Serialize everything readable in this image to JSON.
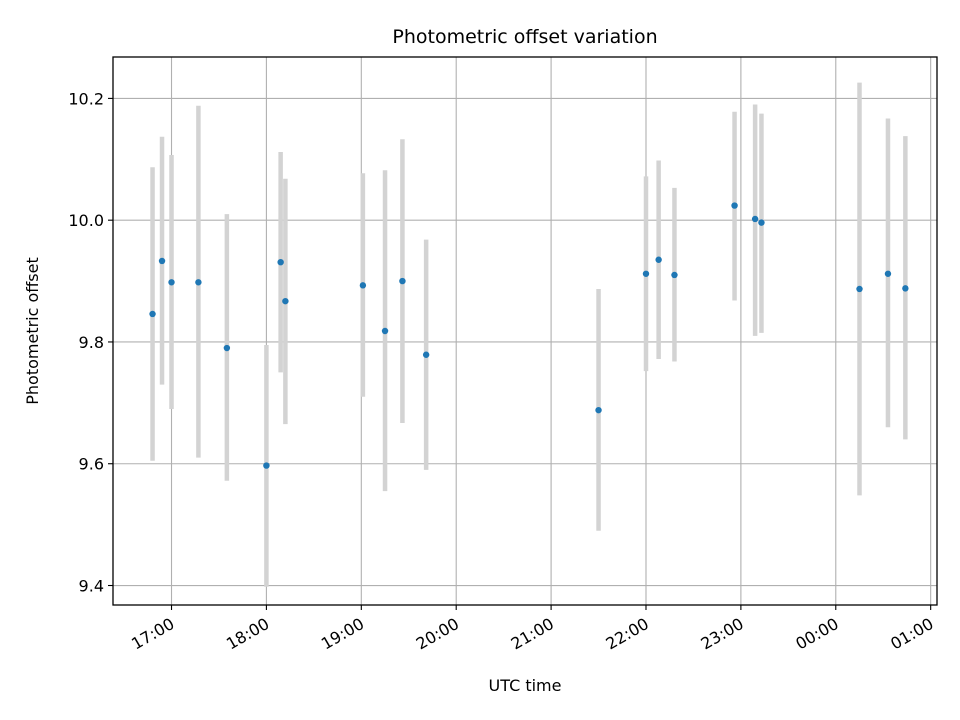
{
  "chart_data": {
    "type": "scatter",
    "title": "Photometric offset variation",
    "xlabel": "UTC time",
    "ylabel": "Photometric offset",
    "x_ticks": [
      "17:00",
      "18:00",
      "19:00",
      "20:00",
      "21:00",
      "22:00",
      "23:00",
      "00:00",
      "01:00"
    ],
    "y_ticks": [
      "9.4",
      "9.6",
      "9.8",
      "10.0",
      "10.2"
    ],
    "x_tick_values": [
      17.0,
      18.0,
      19.0,
      20.0,
      21.0,
      22.0,
      23.0,
      24.0,
      25.0
    ],
    "y_tick_values": [
      9.4,
      9.6,
      9.8,
      10.0,
      10.2
    ],
    "xlim": [
      "16:23",
      "25:04"
    ],
    "ylim": [
      9.368,
      10.268
    ],
    "grid": true,
    "marker_color": "#1f77b4",
    "errorbar_color": "#d3d3d3",
    "points": [
      {
        "x": "16:48",
        "y": 9.846,
        "low": 9.605,
        "high": 10.087
      },
      {
        "x": "16:54",
        "y": 9.933,
        "low": 9.73,
        "high": 10.137
      },
      {
        "x": "17:00",
        "y": 9.898,
        "low": 9.69,
        "high": 10.107
      },
      {
        "x": "17:17",
        "y": 9.898,
        "low": 9.61,
        "high": 10.188
      },
      {
        "x": "17:35",
        "y": 9.79,
        "low": 9.572,
        "high": 10.01
      },
      {
        "x": "18:00",
        "y": 9.597,
        "low": 9.398,
        "high": 9.795
      },
      {
        "x": "18:09",
        "y": 9.931,
        "low": 9.75,
        "high": 10.112
      },
      {
        "x": "18:12",
        "y": 9.867,
        "low": 9.665,
        "high": 10.068
      },
      {
        "x": "19:01",
        "y": 9.893,
        "low": 9.71,
        "high": 10.077
      },
      {
        "x": "19:15",
        "y": 9.818,
        "low": 9.555,
        "high": 10.082
      },
      {
        "x": "19:26",
        "y": 9.9,
        "low": 9.667,
        "high": 10.133
      },
      {
        "x": "19:41",
        "y": 9.779,
        "low": 9.59,
        "high": 9.968
      },
      {
        "x": "21:30",
        "y": 9.688,
        "low": 9.49,
        "high": 9.887
      },
      {
        "x": "22:00",
        "y": 9.912,
        "low": 9.752,
        "high": 10.072
      },
      {
        "x": "22:08",
        "y": 9.935,
        "low": 9.772,
        "high": 10.098
      },
      {
        "x": "22:18",
        "y": 9.91,
        "low": 9.768,
        "high": 10.053
      },
      {
        "x": "22:56",
        "y": 10.024,
        "low": 9.868,
        "high": 10.178
      },
      {
        "x": "23:09",
        "y": 10.002,
        "low": 9.81,
        "high": 10.19
      },
      {
        "x": "23:13",
        "y": 9.996,
        "low": 9.815,
        "high": 10.175
      },
      {
        "x": "00:15",
        "y": 9.887,
        "low": 9.548,
        "high": 10.226
      },
      {
        "x": "00:33",
        "y": 9.912,
        "low": 9.66,
        "high": 10.167
      },
      {
        "x": "00:44",
        "y": 9.888,
        "low": 9.64,
        "high": 10.138
      }
    ]
  }
}
